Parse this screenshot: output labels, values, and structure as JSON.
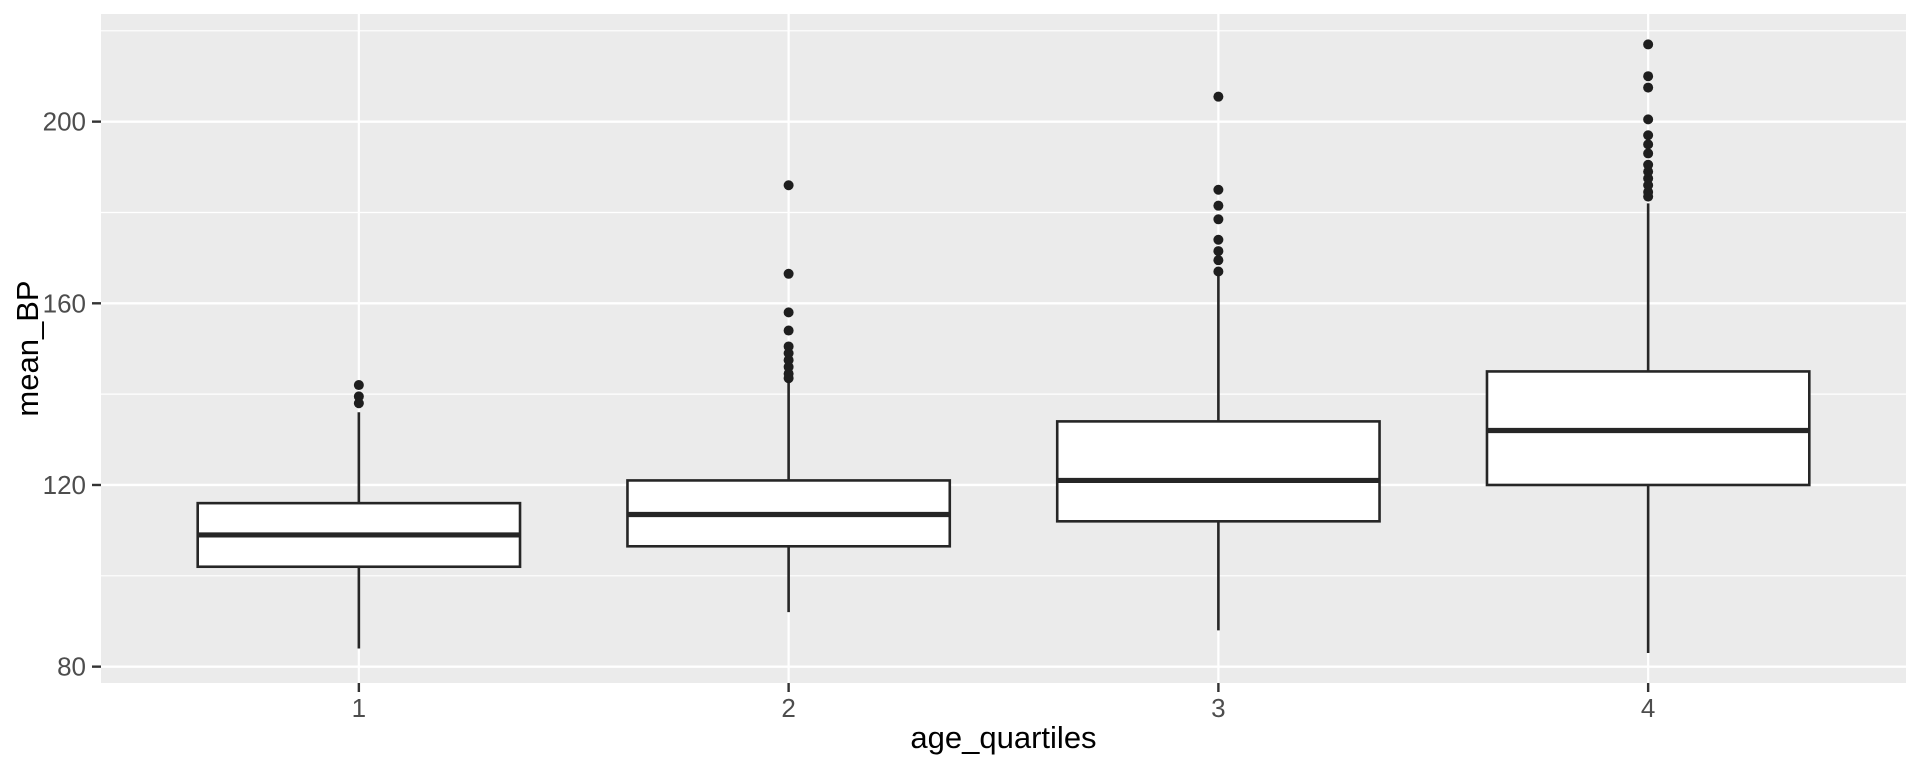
{
  "chart_data": {
    "type": "boxplot",
    "title": "",
    "xlabel": "age_quartiles",
    "ylabel": "mean_BP",
    "categories": [
      "1",
      "2",
      "3",
      "4"
    ],
    "y_ticks": [
      80,
      120,
      160,
      200
    ],
    "y_minor_gridlines": [
      100,
      140,
      180,
      220
    ],
    "ylim": [
      76.4,
      223.7
    ],
    "legend": "none",
    "grid": "on",
    "series": [
      {
        "label": "1",
        "lower_whisker": 84,
        "q1": 102,
        "median": 109,
        "q3": 116,
        "upper_whisker": 136,
        "outliers": [
          138,
          139.5,
          142
        ]
      },
      {
        "label": "2",
        "lower_whisker": 92,
        "q1": 106.5,
        "median": 113.5,
        "q3": 121,
        "upper_whisker": 143,
        "outliers": [
          143.5,
          144.5,
          146,
          147.5,
          149,
          150.5,
          154,
          158,
          166.5,
          186
        ]
      },
      {
        "label": "3",
        "lower_whisker": 88,
        "q1": 112,
        "median": 121,
        "q3": 134,
        "upper_whisker": 166,
        "outliers": [
          167,
          169.5,
          171.5,
          174,
          178.5,
          181.5,
          185,
          205.5
        ]
      },
      {
        "label": "4",
        "lower_whisker": 83,
        "q1": 120,
        "median": 132,
        "q3": 145,
        "upper_whisker": 182,
        "outliers": [
          183.5,
          184.5,
          186,
          187.5,
          189,
          190.5,
          193,
          195,
          197,
          200.5,
          207.5,
          210,
          217
        ]
      }
    ],
    "colors": {
      "panel_background": "#EBEBEB",
      "gridline": "#FFFFFF",
      "box_fill": "#FFFFFF",
      "box_stroke": "#262626",
      "outlier_fill": "#1E1E1E",
      "tick_mark": "#333333",
      "axis_text": "#4D4D4D",
      "axis_title": "#000000",
      "plot_background": "#FFFFFF"
    }
  }
}
